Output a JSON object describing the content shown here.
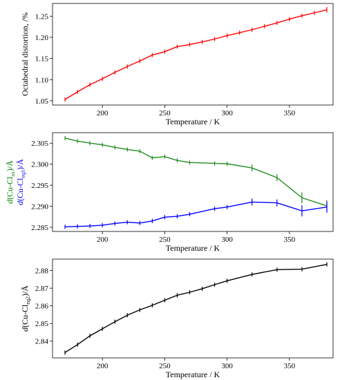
{
  "chart_data": [
    {
      "type": "line",
      "xlabel": "Temperature / K",
      "ylabel": "Octahedral distortion, /%",
      "xlim": [
        160,
        385
      ],
      "ylim": [
        1.04,
        1.28
      ],
      "xticks": [
        "200",
        "250",
        "300",
        "350"
      ],
      "yticks": [
        "1.05",
        "1.10",
        "1.15",
        "1.20",
        "1.25"
      ],
      "series": [
        {
          "color": "#ff0000",
          "error_bars": true,
          "x": [
            170,
            180,
            190,
            200,
            210,
            220,
            230,
            240,
            250,
            260,
            270,
            280,
            290,
            300,
            310,
            320,
            330,
            340,
            350,
            360,
            370,
            380
          ],
          "y": [
            1.053,
            1.071,
            1.088,
            1.102,
            1.117,
            1.131,
            1.144,
            1.158,
            1.166,
            1.178,
            1.183,
            1.189,
            1.196,
            1.204,
            1.211,
            1.218,
            1.226,
            1.234,
            1.243,
            1.251,
            1.258,
            1.265
          ]
        }
      ]
    },
    {
      "type": "line",
      "xlabel": "Temperature / K",
      "ylabel_parts": [
        {
          "prefix": "d",
          "text": "(Cu-Cl",
          "sub": "ax",
          "suffix": ")/Å",
          "color": "#008000"
        },
        {
          "prefix": "d",
          "text": "(Cu-Cl",
          "sub": "eq1",
          "suffix": ")/Å",
          "color": "#0000ff"
        }
      ],
      "xlim": [
        160,
        385
      ],
      "ylim": [
        2.284,
        2.3075
      ],
      "xticks": [
        "200",
        "250",
        "300",
        "350"
      ],
      "yticks": [
        "2.285",
        "2.290",
        "2.295",
        "2.300",
        "2.305"
      ],
      "series": [
        {
          "color": "#228b22",
          "error_bars": true,
          "x": [
            170,
            180,
            190,
            200,
            210,
            220,
            230,
            240,
            250,
            260,
            270,
            290,
            300,
            320,
            340,
            360,
            380
          ],
          "y": [
            2.3062,
            2.3055,
            2.305,
            2.3046,
            2.304,
            2.3035,
            2.3031,
            2.3015,
            2.3018,
            2.3009,
            2.3004,
            2.3002,
            2.3001,
            2.2991,
            2.2968,
            2.292,
            2.2901
          ]
        },
        {
          "color": "#0000ff",
          "error_bars": true,
          "x": [
            170,
            180,
            190,
            200,
            210,
            220,
            230,
            240,
            250,
            260,
            270,
            290,
            300,
            320,
            340,
            360,
            380
          ],
          "y": [
            2.2851,
            2.2852,
            2.2853,
            2.2855,
            2.2859,
            2.2862,
            2.286,
            2.2865,
            2.2874,
            2.2876,
            2.2881,
            2.2894,
            2.2898,
            2.291,
            2.2908,
            2.2889,
            2.2898
          ]
        }
      ]
    },
    {
      "type": "line",
      "xlabel": "Temperature / K",
      "ylabel_parts": [
        {
          "prefix": "d",
          "text": "(Cu-Cl",
          "sub": "eq2",
          "suffix": ")/Å",
          "color": "#000000"
        }
      ],
      "xlim": [
        160,
        385
      ],
      "ylim": [
        2.8305,
        2.8865
      ],
      "xticks": [
        "200",
        "250",
        "300",
        "350"
      ],
      "yticks": [
        "2.84",
        "2.85",
        "2.86",
        "2.87",
        "2.88"
      ],
      "series": [
        {
          "color": "#000000",
          "error_bars": true,
          "x": [
            170,
            180,
            190,
            200,
            210,
            220,
            230,
            240,
            250,
            260,
            270,
            280,
            290,
            300,
            320,
            340,
            360,
            380
          ],
          "y": [
            2.8335,
            2.838,
            2.843,
            2.847,
            2.851,
            2.8547,
            2.8577,
            2.8603,
            2.8632,
            2.866,
            2.8677,
            2.8697,
            2.872,
            2.8742,
            2.8778,
            2.8805,
            2.8808,
            2.8835
          ]
        }
      ]
    }
  ]
}
